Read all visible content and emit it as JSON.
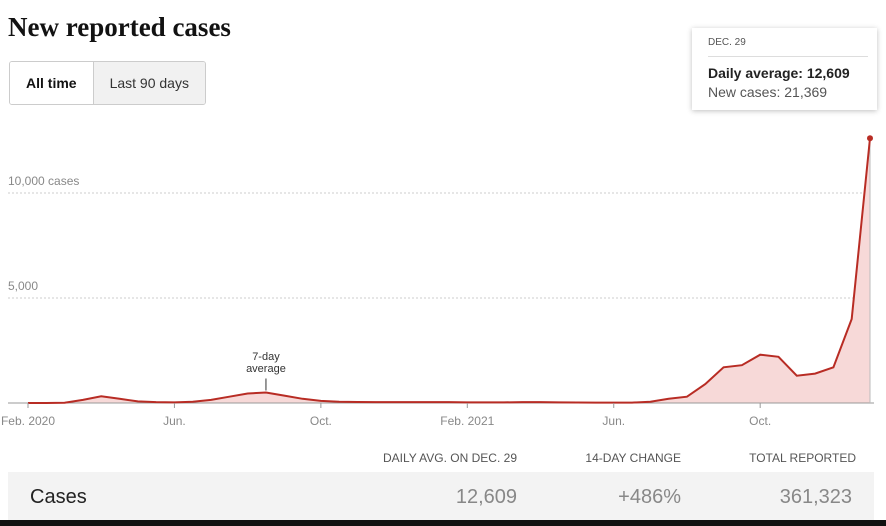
{
  "chart_data": {
    "type": "line",
    "title": "New reported cases",
    "controls": [
      "All time",
      "Last 90 days"
    ],
    "tooltip": {
      "date": "DEC. 29",
      "lines": [
        "Daily average: 12,609",
        "New cases: 21,369"
      ]
    },
    "annotation": "7-day average",
    "annotation_index": 13,
    "categories": [
      "Feb. 2020",
      null,
      null,
      null,
      null,
      null,
      null,
      null,
      "Jun.",
      null,
      null,
      null,
      null,
      null,
      null,
      null,
      "Oct.",
      null,
      null,
      null,
      null,
      null,
      null,
      null,
      "Feb. 2021",
      null,
      null,
      null,
      null,
      null,
      null,
      null,
      "Jun.",
      null,
      null,
      null,
      null,
      null,
      null,
      null,
      "Oct.",
      null,
      null,
      null,
      null,
      null,
      null
    ],
    "values": [
      0,
      0,
      10,
      150,
      320,
      200,
      80,
      40,
      30,
      60,
      150,
      300,
      450,
      500,
      350,
      200,
      100,
      60,
      50,
      40,
      40,
      40,
      40,
      40,
      30,
      30,
      30,
      40,
      40,
      30,
      25,
      20,
      20,
      20,
      60,
      200,
      300,
      900,
      1700,
      1800,
      2300,
      2200,
      1300,
      1400,
      1700,
      4000,
      12609
    ],
    "color": "#b82c24",
    "fill": "#f7d9d8",
    "ylim": [
      0,
      13000
    ],
    "yticks": [
      {
        "value": 5000,
        "label": "5,000"
      },
      {
        "value": 10000,
        "label": "10,000 cases"
      }
    ],
    "grid": true
  },
  "summary": {
    "headers": [
      "DAILY AVG. ON DEC. 29",
      "14-DAY CHANGE",
      "TOTAL REPORTED"
    ],
    "row": [
      "Cases",
      "12,609",
      "+486%",
      "361,323"
    ]
  }
}
